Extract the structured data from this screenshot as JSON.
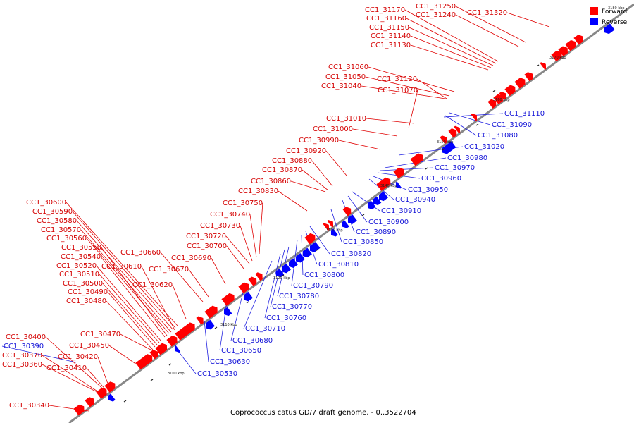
{
  "caption": "Coprococcus catus GD/7 draft genome. - 0..3522704",
  "legend": [
    {
      "label": "Forward",
      "color": "#ff0000"
    },
    {
      "label": "Reverse",
      "color": "#0000ff"
    }
  ],
  "colors": {
    "forward": "#ff0000",
    "reverse": "#0000ff",
    "forward_line": "#e00000",
    "reverse_line": "#2020e0",
    "axis": "#888888"
  },
  "ticks": [
    "3100 kbp",
    "3110 kbp",
    "3120 kbp",
    "3130 kbp",
    "3140 kbp",
    "3150 kbp",
    "3160 kbp",
    "3170 kbp",
    "3180 kbp"
  ],
  "forward_genes": [
    "CC1_30340",
    "CC1_30360",
    "CC1_30370",
    "CC1_30400",
    "CC1_30410",
    "CC1_30420",
    "CC1_30450",
    "CC1_30470",
    "CC1_30480",
    "CC1_30490",
    "CC1_30500",
    "CC1_30510",
    "CC1_30520",
    "CC1_30540",
    "CC1_30550",
    "CC1_30560",
    "CC1_30570",
    "CC1_30580",
    "CC1_30590",
    "CC1_30600",
    "CC1_30610",
    "CC1_30620",
    "CC1_30660",
    "CC1_30670",
    "CC1_30690",
    "CC1_30700",
    "CC1_30720",
    "CC1_30730",
    "CC1_30740",
    "CC1_30750",
    "CC1_30830",
    "CC1_30860",
    "CC1_30870",
    "CC1_30880",
    "CC1_30920",
    "CC1_30990",
    "CC1_31000",
    "CC1_31010",
    "CC1_31040",
    "CC1_31050",
    "CC1_31060",
    "CC1_31070",
    "CC1_31120",
    "CC1_31130",
    "CC1_31140",
    "CC1_31150",
    "CC1_31160",
    "CC1_31170",
    "CC1_31240",
    "CC1_31250",
    "CC1_31320"
  ],
  "reverse_genes": [
    "CC1_30390",
    "CC1_30530",
    "CC1_30630",
    "CC1_30650",
    "CC1_30680",
    "CC1_30710",
    "CC1_30760",
    "CC1_30770",
    "CC1_30780",
    "CC1_30790",
    "CC1_30800",
    "CC1_30810",
    "CC1_30820",
    "CC1_30850",
    "CC1_30890",
    "CC1_30900",
    "CC1_30910",
    "CC1_30940",
    "CC1_30950",
    "CC1_30960",
    "CC1_30970",
    "CC1_30980",
    "CC1_31020",
    "CC1_31080",
    "CC1_31090",
    "CC1_31110"
  ]
}
